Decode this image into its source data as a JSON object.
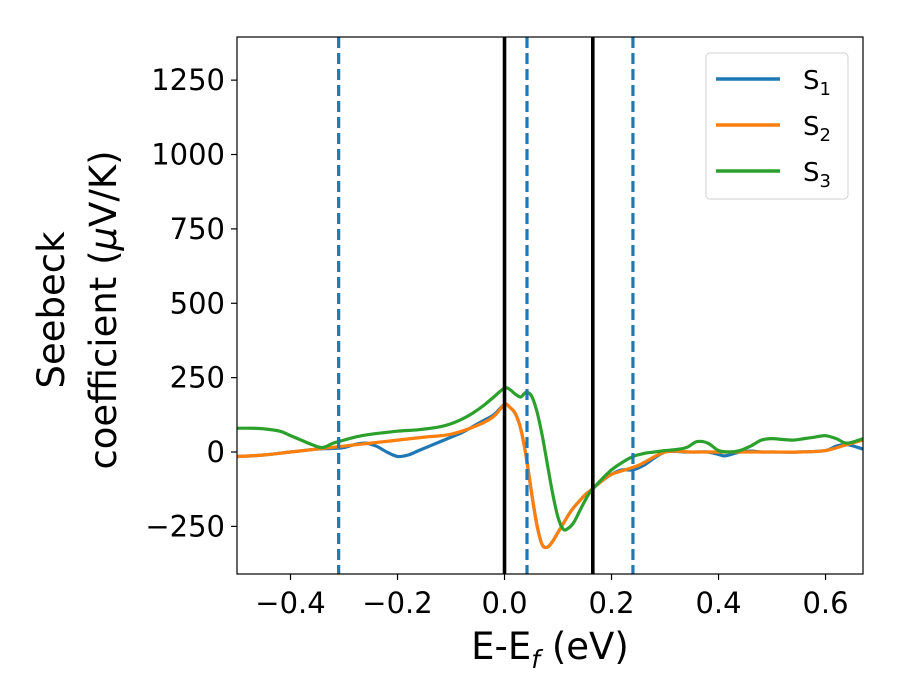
{
  "chart_data": {
    "type": "line",
    "xlabel": {
      "main": "E-E",
      "sub": "f",
      "rest": " (eV)"
    },
    "ylabel": {
      "line1": "Seebeck",
      "line2_pre": "coefficient  (",
      "line2_mu": "μ",
      "line2_post": "V/K)"
    },
    "xlim": [
      -0.5,
      0.67
    ],
    "ylim": [
      -410,
      1395
    ],
    "xticks": [
      -0.4,
      -0.2,
      0.0,
      0.2,
      0.4,
      0.6
    ],
    "xtick_labels": [
      "−0.4",
      "−0.2",
      "0.0",
      "0.2",
      "0.4",
      "0.6"
    ],
    "yticks": [
      -250,
      0,
      250,
      500,
      750,
      1000,
      1250
    ],
    "ytick_labels": [
      "−250",
      "0",
      "250",
      "500",
      "750",
      "1000",
      "1250"
    ],
    "grid": false,
    "legend_position": "top-right",
    "vlines": [
      {
        "x": -0.31,
        "style": "dashed",
        "color": "#1f77b4"
      },
      {
        "x": 0.0,
        "style": "solid",
        "color": "#000000"
      },
      {
        "x": 0.042,
        "style": "dashed",
        "color": "#1f77b4"
      },
      {
        "x": 0.165,
        "style": "solid",
        "color": "#000000"
      },
      {
        "x": 0.24,
        "style": "dashed",
        "color": "#1f77b4"
      }
    ],
    "series": [
      {
        "name": "S",
        "sub": "1",
        "color": "#1f77b4",
        "x": [
          -0.5,
          -0.45,
          -0.4,
          -0.35,
          -0.32,
          -0.3,
          -0.28,
          -0.26,
          -0.24,
          -0.22,
          -0.2,
          -0.18,
          -0.16,
          -0.14,
          -0.12,
          -0.1,
          -0.08,
          -0.06,
          -0.04,
          -0.02,
          0.0,
          0.01,
          0.02,
          0.03,
          0.04,
          0.05,
          0.06,
          0.07,
          0.08,
          0.09,
          0.1,
          0.11,
          0.12,
          0.13,
          0.14,
          0.15,
          0.16,
          0.18,
          0.2,
          0.22,
          0.24,
          0.26,
          0.28,
          0.3,
          0.32,
          0.34,
          0.36,
          0.38,
          0.4,
          0.41,
          0.42,
          0.44,
          0.46,
          0.48,
          0.5,
          0.55,
          0.6,
          0.62,
          0.64,
          0.67
        ],
        "y": [
          -15,
          -10,
          0,
          10,
          12,
          15,
          25,
          30,
          20,
          0,
          -15,
          -10,
          5,
          20,
          35,
          50,
          65,
          85,
          105,
          125,
          160,
          150,
          130,
          80,
          -10,
          -130,
          -240,
          -310,
          -320,
          -300,
          -270,
          -240,
          -210,
          -185,
          -165,
          -145,
          -130,
          -100,
          -75,
          -60,
          -60,
          -45,
          -20,
          0,
          2,
          0,
          0,
          0,
          -8,
          -13,
          -10,
          0,
          3,
          0,
          0,
          0,
          5,
          20,
          25,
          10
        ]
      },
      {
        "name": "S",
        "sub": "2",
        "color": "#ff7f0e",
        "x": [
          -0.5,
          -0.45,
          -0.4,
          -0.35,
          -0.3,
          -0.25,
          -0.2,
          -0.15,
          -0.1,
          -0.05,
          -0.02,
          0.0,
          0.01,
          0.02,
          0.03,
          0.04,
          0.05,
          0.06,
          0.07,
          0.08,
          0.09,
          0.1,
          0.11,
          0.12,
          0.13,
          0.14,
          0.15,
          0.16,
          0.18,
          0.2,
          0.25,
          0.3,
          0.35,
          0.4,
          0.45,
          0.5,
          0.55,
          0.6,
          0.64,
          0.67
        ],
        "y": [
          -15,
          -10,
          0,
          10,
          20,
          30,
          40,
          50,
          60,
          90,
          120,
          160,
          150,
          130,
          80,
          -10,
          -130,
          -240,
          -310,
          -320,
          -300,
          -270,
          -240,
          -210,
          -185,
          -165,
          -145,
          -130,
          -100,
          -75,
          -45,
          0,
          0,
          0,
          0,
          0,
          0,
          5,
          25,
          40
        ]
      },
      {
        "name": "S",
        "sub": "3",
        "color": "#2ca02c",
        "x": [
          -0.5,
          -0.47,
          -0.45,
          -0.42,
          -0.4,
          -0.38,
          -0.36,
          -0.34,
          -0.32,
          -0.3,
          -0.28,
          -0.26,
          -0.24,
          -0.2,
          -0.16,
          -0.12,
          -0.1,
          -0.08,
          -0.06,
          -0.04,
          -0.02,
          0.0,
          0.01,
          0.02,
          0.03,
          0.04,
          0.05,
          0.06,
          0.07,
          0.08,
          0.09,
          0.1,
          0.11,
          0.12,
          0.13,
          0.14,
          0.15,
          0.16,
          0.18,
          0.2,
          0.22,
          0.24,
          0.26,
          0.28,
          0.3,
          0.32,
          0.34,
          0.36,
          0.38,
          0.4,
          0.42,
          0.44,
          0.46,
          0.48,
          0.5,
          0.52,
          0.54,
          0.56,
          0.58,
          0.6,
          0.62,
          0.64,
          0.67
        ],
        "y": [
          80,
          80,
          78,
          70,
          55,
          40,
          25,
          15,
          30,
          40,
          50,
          57,
          62,
          70,
          75,
          85,
          95,
          110,
          130,
          155,
          185,
          215,
          210,
          195,
          185,
          200,
          190,
          140,
          60,
          -40,
          -140,
          -220,
          -260,
          -255,
          -235,
          -200,
          -165,
          -135,
          -95,
          -60,
          -35,
          -15,
          -5,
          0,
          5,
          8,
          15,
          35,
          30,
          5,
          0,
          5,
          20,
          40,
          45,
          42,
          40,
          45,
          50,
          55,
          45,
          30,
          45
        ]
      }
    ]
  }
}
